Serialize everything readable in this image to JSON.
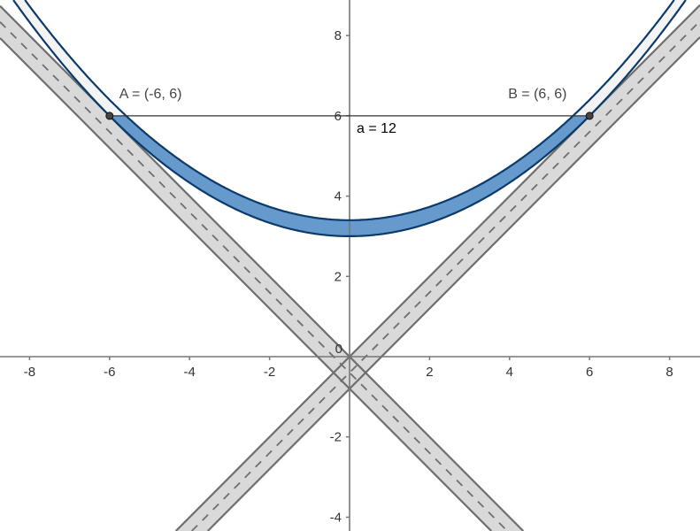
{
  "chart_data": {
    "type": "line",
    "xlim": [
      -8.7,
      8.8
    ],
    "ylim": [
      -4.3,
      8.9
    ],
    "grid": false,
    "x_ticks": [
      "-8",
      "-6",
      "-4",
      "-2",
      "2",
      "4",
      "6",
      "8"
    ],
    "y_ticks": [
      "8",
      "6",
      "4",
      "2",
      "-2",
      "-4"
    ],
    "origin_label": "0",
    "curves": [
      {
        "expr": "y = 3 + x^2/12",
        "vertex": [
          0,
          3
        ]
      },
      {
        "expr": "y = 3.4 + x^2/12",
        "vertex": [
          0,
          3.4
        ]
      }
    ],
    "bands": [
      {
        "edges": [
          "y = x",
          "y = x - 0.8"
        ],
        "center": "y = x - 0.4"
      },
      {
        "edges": [
          "y = -x",
          "y = -x - 0.8"
        ],
        "center": "y = -x - 0.4"
      }
    ],
    "points": [
      {
        "name": "A",
        "x": -6,
        "y": 6,
        "label": "A = (-6, 6)"
      },
      {
        "name": "B",
        "x": 6,
        "y": 6,
        "label": "B = (6, 6)"
      }
    ],
    "segment": {
      "from": "A",
      "to": "B",
      "label": "a = 12"
    },
    "colors": {
      "curve_stroke": "#0b3a6b",
      "band_fill_between_curves": "#6699cc",
      "upper_fill": "#f4f4f4",
      "road_fill": "#d9d9d9",
      "road_stroke": "#6e6e6e",
      "axis": "#777777"
    }
  }
}
